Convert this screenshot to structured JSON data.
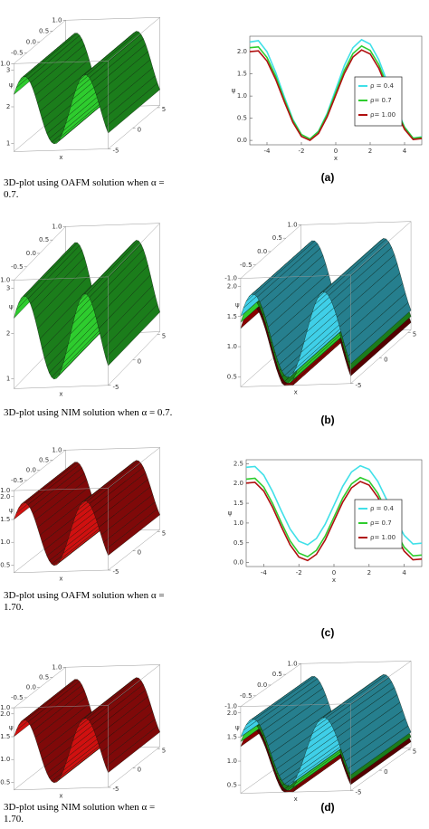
{
  "chart_data": [
    {
      "type": "surface3d",
      "caption": "3D-plot using OAFM solution when α = 0.7.",
      "colors": [
        "#2ecc2e"
      ],
      "xlabel": "x",
      "zlabel": "ψ",
      "tticks": [
        {
          "value": 1,
          "label": "1.0"
        },
        {
          "value": 0.5,
          "label": "0.5"
        },
        {
          "value": 0,
          "label": "0.0"
        },
        {
          "value": -0.5,
          "label": "-0.5"
        },
        {
          "value": -1,
          "label": "-1.0"
        }
      ],
      "zticks": [
        3,
        2,
        1
      ],
      "xticks": [
        -5,
        0,
        5
      ]
    },
    {
      "type": "line",
      "panel_label": "(a)",
      "xlabel": "x",
      "ylabel": "ψ",
      "legend": "center right",
      "x": [
        -5,
        -4.5,
        -4,
        -3.5,
        -3,
        -2.5,
        -2,
        -1.5,
        -1,
        -0.5,
        0,
        0.5,
        1,
        1.5,
        2,
        2.5,
        3,
        3.5,
        4,
        4.5,
        5
      ],
      "xlim": [
        -5,
        5
      ],
      "ylim": [
        -0.1,
        2.35
      ],
      "xticks": [
        -4,
        -2,
        0,
        2,
        4
      ],
      "yticks": [
        {
          "value": 0,
          "label": "0.0"
        },
        {
          "value": 0.5,
          "label": "0.5"
        },
        {
          "value": 1,
          "label": "1.0"
        },
        {
          "value": 1.5,
          "label": "1.5"
        },
        {
          "value": 2,
          "label": "2.0"
        }
      ],
      "series": [
        {
          "name": "ρ = 0.4",
          "color": "#40e0e8",
          "values": [
            2.22,
            2.25,
            2.0,
            1.54,
            0.99,
            0.48,
            0.13,
            0.03,
            0.21,
            0.61,
            1.15,
            1.69,
            2.09,
            2.27,
            2.17,
            1.82,
            1.31,
            0.76,
            0.3,
            0.05,
            0.08
          ]
        },
        {
          "name": "ρ= 0.7",
          "color": "#2ecc2e",
          "values": [
            2.09,
            2.11,
            1.87,
            1.45,
            0.93,
            0.45,
            0.13,
            0.03,
            0.2,
            0.58,
            1.08,
            1.58,
            1.96,
            2.13,
            2.03,
            1.71,
            1.23,
            0.71,
            0.29,
            0.05,
            0.07
          ]
        },
        {
          "name": "ρ= 1.00",
          "color": "#b01010",
          "values": [
            2.0,
            2.02,
            1.79,
            1.38,
            0.88,
            0.41,
            0.09,
            0.0,
            0.16,
            0.53,
            1.02,
            1.51,
            1.88,
            2.04,
            1.95,
            1.63,
            1.16,
            0.66,
            0.25,
            0.02,
            0.04
          ]
        }
      ]
    },
    {
      "type": "surface3d",
      "caption": "3D-plot using NIM solution when α = 0.7.",
      "colors": [
        "#2ecc2e"
      ],
      "xlabel": "x",
      "zlabel": "ψ",
      "tticks": [
        {
          "value": 1,
          "label": "1.0"
        },
        {
          "value": 0.5,
          "label": "0.5"
        },
        {
          "value": 0,
          "label": "0.0"
        },
        {
          "value": -0.5,
          "label": "-0.5"
        },
        {
          "value": -1,
          "label": "-1.0"
        }
      ],
      "zticks": [
        3,
        2,
        1
      ],
      "xticks": [
        -5,
        0,
        5
      ]
    },
    {
      "type": "surface3d",
      "panel_label": "(b)",
      "colors": [
        "#8b0000",
        "#2ecc2e",
        "#3fcfe8"
      ],
      "xlabel": "x",
      "zlabel": "ψ",
      "tticks": [
        {
          "value": 1,
          "label": "1.0"
        },
        {
          "value": 0.5,
          "label": "0.5"
        },
        {
          "value": 0,
          "label": "0.0"
        },
        {
          "value": -0.5,
          "label": "-0.5"
        },
        {
          "value": -1,
          "label": "-1.0"
        }
      ],
      "zticks": [
        {
          "value": 2,
          "label": "2.0"
        },
        {
          "value": 1.5,
          "label": "1.5"
        },
        {
          "value": 1,
          "label": "1.0"
        },
        {
          "value": 0.5,
          "label": "0.5"
        }
      ],
      "xticks": [
        -5,
        0,
        5
      ]
    },
    {
      "type": "surface3d",
      "caption": "3D-plot using OAFM solution when α = 1.70.",
      "colors": [
        "#d01010"
      ],
      "xlabel": "x",
      "zlabel": "ψ",
      "tticks": [
        {
          "value": 1,
          "label": "1.0"
        },
        {
          "value": 0.5,
          "label": "0.5"
        },
        {
          "value": 0,
          "label": "0.0"
        },
        {
          "value": -0.5,
          "label": "-0.5"
        },
        {
          "value": -1,
          "label": "-1.0"
        }
      ],
      "zticks": [
        {
          "value": 2,
          "label": "2.0"
        },
        {
          "value": 1.5,
          "label": "1.5"
        },
        {
          "value": 1,
          "label": "1.0"
        },
        {
          "value": 0.5,
          "label": "0.5"
        }
      ],
      "xticks": [
        -5,
        0,
        5
      ]
    },
    {
      "type": "line",
      "panel_label": "(c)",
      "xlabel": "x",
      "ylabel": "ψ",
      "legend": "center right",
      "x": [
        -5,
        -4.5,
        -4,
        -3.5,
        -3,
        -2.5,
        -2,
        -1.5,
        -1,
        -0.5,
        0,
        0.5,
        1,
        1.5,
        2,
        2.5,
        3,
        3.5,
        4,
        4.5,
        5
      ],
      "xlim": [
        -5,
        5
      ],
      "ylim": [
        -0.1,
        2.6
      ],
      "xticks": [
        -4,
        -2,
        0,
        2,
        4
      ],
      "yticks": [
        {
          "value": 0,
          "label": "0.0"
        },
        {
          "value": 0.5,
          "label": "0.5"
        },
        {
          "value": 1,
          "label": "1.0"
        },
        {
          "value": 1.5,
          "label": "1.5"
        },
        {
          "value": 2,
          "label": "2.0"
        },
        {
          "value": 2.5,
          "label": "2.5"
        }
      ],
      "series": [
        {
          "name": "ρ = 0.4",
          "color": "#40e0e8",
          "values": [
            2.41,
            2.43,
            2.21,
            1.8,
            1.31,
            0.85,
            0.54,
            0.45,
            0.61,
            0.97,
            1.45,
            1.93,
            2.29,
            2.45,
            2.36,
            2.05,
            1.59,
            1.1,
            0.69,
            0.47,
            0.49
          ]
        },
        {
          "name": "ρ= 0.7",
          "color": "#2ecc2e",
          "values": [
            2.11,
            2.13,
            1.91,
            1.5,
            1.01,
            0.55,
            0.24,
            0.15,
            0.31,
            0.67,
            1.15,
            1.63,
            1.99,
            2.15,
            2.06,
            1.75,
            1.29,
            0.8,
            0.39,
            0.17,
            0.19
          ]
        },
        {
          "name": "ρ= 1.00",
          "color": "#b01010",
          "values": [
            2.01,
            2.03,
            1.81,
            1.4,
            0.91,
            0.45,
            0.14,
            0.05,
            0.21,
            0.57,
            1.05,
            1.53,
            1.89,
            2.05,
            1.96,
            1.65,
            1.19,
            0.7,
            0.29,
            0.07,
            0.09
          ]
        }
      ]
    },
    {
      "type": "surface3d",
      "caption": "3D-plot using NIM solution when α = 1.70.",
      "colors": [
        "#d01010"
      ],
      "xlabel": "x",
      "zlabel": "ψ",
      "tticks": [
        {
          "value": 1,
          "label": "1.0"
        },
        {
          "value": 0.5,
          "label": "0.5"
        },
        {
          "value": 0,
          "label": "0.0"
        },
        {
          "value": -0.5,
          "label": "-0.5"
        },
        {
          "value": -1,
          "label": "-1.0"
        }
      ],
      "zticks": [
        {
          "value": 2,
          "label": "2.0"
        },
        {
          "value": 1.5,
          "label": "1.5"
        },
        {
          "value": 1,
          "label": "1.0"
        },
        {
          "value": 0.5,
          "label": "0.5"
        }
      ],
      "xticks": [
        -5,
        0,
        5
      ]
    },
    {
      "type": "surface3d",
      "panel_label": "(d)",
      "colors": [
        "#8b0000",
        "#2ecc2e",
        "#3fcfe8"
      ],
      "xlabel": "x",
      "zlabel": "ψ",
      "tticks": [
        {
          "value": 1,
          "label": "1.0"
        },
        {
          "value": 0.5,
          "label": "0.5"
        },
        {
          "value": 0,
          "label": "0.0"
        },
        {
          "value": -0.5,
          "label": "-0.5"
        },
        {
          "value": -1,
          "label": "-1.0"
        }
      ],
      "zticks": [
        {
          "value": 2,
          "label": "2.0"
        },
        {
          "value": 1.5,
          "label": "1.5"
        },
        {
          "value": 1,
          "label": "1.0"
        },
        {
          "value": 0.5,
          "label": "0.5"
        }
      ],
      "xticks": [
        -5,
        0,
        5
      ]
    }
  ]
}
